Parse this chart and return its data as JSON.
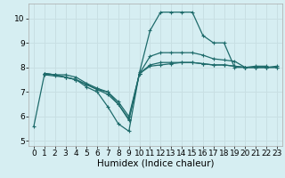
{
  "title": "",
  "xlabel": "Humidex (Indice chaleur)",
  "background_color": "#d6eef2",
  "grid_color": "#c8dfe3",
  "line_color": "#1e6b6b",
  "xlim": [
    -0.5,
    23.5
  ],
  "ylim": [
    4.8,
    10.6
  ],
  "yticks": [
    5,
    6,
    7,
    8,
    9,
    10
  ],
  "xticks": [
    0,
    1,
    2,
    3,
    4,
    5,
    6,
    7,
    8,
    9,
    10,
    11,
    12,
    13,
    14,
    15,
    16,
    17,
    18,
    19,
    20,
    21,
    22,
    23
  ],
  "lines": [
    {
      "x": [
        0,
        1,
        2,
        3,
        4,
        5,
        6,
        7,
        8,
        9,
        10,
        11,
        12,
        13,
        14,
        15,
        16,
        17,
        18,
        19,
        20,
        21,
        22
      ],
      "y": [
        5.6,
        7.7,
        7.65,
        7.6,
        7.5,
        7.2,
        7.0,
        6.4,
        5.7,
        5.4,
        7.8,
        9.5,
        10.25,
        10.25,
        10.25,
        10.25,
        9.3,
        9.0,
        9.0,
        8.0,
        8.0,
        8.05,
        8.05
      ]
    },
    {
      "x": [
        1,
        2,
        3,
        4,
        5,
        6,
        7,
        8,
        9,
        10,
        11,
        12,
        13,
        14,
        15,
        16,
        17,
        18,
        19,
        20,
        21,
        22,
        23
      ],
      "y": [
        7.75,
        7.7,
        7.6,
        7.5,
        7.3,
        7.1,
        6.9,
        6.5,
        5.85,
        7.75,
        8.45,
        8.6,
        8.6,
        8.6,
        8.6,
        8.5,
        8.35,
        8.3,
        8.25,
        8.0,
        8.0,
        8.0,
        8.0
      ]
    },
    {
      "x": [
        1,
        2,
        3,
        4,
        5,
        6,
        7,
        8,
        9,
        10,
        11,
        12,
        13,
        14,
        15,
        16,
        17,
        18,
        19,
        20,
        21,
        22,
        23
      ],
      "y": [
        7.75,
        7.7,
        7.6,
        7.5,
        7.3,
        7.1,
        7.0,
        6.5,
        5.9,
        7.75,
        8.1,
        8.2,
        8.2,
        8.2,
        8.2,
        8.15,
        8.1,
        8.1,
        8.05,
        8.0,
        8.0,
        8.0,
        8.0
      ]
    },
    {
      "x": [
        1,
        2,
        3,
        4,
        5,
        6,
        7,
        8,
        9,
        10,
        11,
        12,
        13,
        14,
        15,
        16,
        17,
        18,
        19,
        20,
        21,
        22,
        23
      ],
      "y": [
        7.75,
        7.7,
        7.7,
        7.6,
        7.35,
        7.15,
        7.0,
        6.6,
        6.0,
        7.75,
        8.05,
        8.1,
        8.15,
        8.2,
        8.2,
        8.15,
        8.1,
        8.1,
        8.05,
        8.0,
        8.0,
        8.0,
        8.05
      ]
    }
  ],
  "xlabel_fontsize": 7.5,
  "tick_fontsize": 6.5
}
